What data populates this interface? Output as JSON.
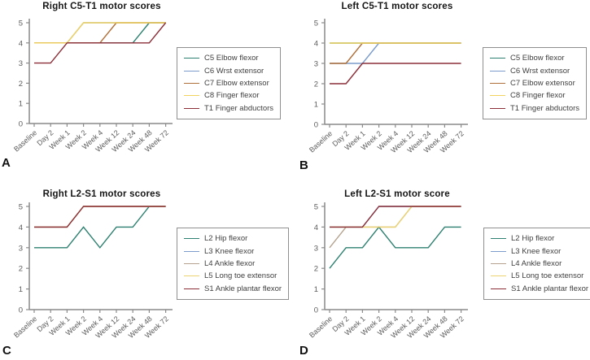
{
  "figure": {
    "background": "#ffffff",
    "axis_color": "#8a8a8a",
    "tick_label_color": "#5c5c5c"
  },
  "chart_data": [
    {
      "type": "line",
      "panel_label": "A",
      "title": "Right C5-T1 motor scores",
      "categories": [
        "Baseline",
        "Day 2",
        "Week 1",
        "Week 2",
        "Week 4",
        "Week 12",
        "Week 24",
        "Week 48",
        "Week 72"
      ],
      "xlabel": "",
      "ylabel": "",
      "ylim": [
        0,
        5
      ],
      "yticks": [
        0,
        1,
        2,
        3,
        4,
        5
      ],
      "grid": false,
      "legend_position": "right",
      "series": [
        {
          "name": "C5 Elbow flexor",
          "color": "#2e8070",
          "values": [
            4,
            4,
            4,
            4,
            4,
            4,
            4,
            5,
            5
          ]
        },
        {
          "name": "C6 Wrst extensor",
          "color": "#7b9ccc",
          "values": [
            4,
            4,
            4,
            5,
            5,
            5,
            5,
            5,
            5
          ]
        },
        {
          "name": "C7 Elbow extensor",
          "color": "#b0703a",
          "values": [
            4,
            4,
            4,
            4,
            4,
            5,
            5,
            5,
            5
          ]
        },
        {
          "name": "C8 Finger flexor",
          "color": "#f2d35e",
          "values": [
            4,
            4,
            4,
            5,
            5,
            5,
            5,
            5,
            5
          ]
        },
        {
          "name": "T1 Finger abductors",
          "color": "#8b2e38",
          "values": [
            3,
            3,
            4,
            4,
            4,
            4,
            4,
            4,
            5
          ]
        }
      ]
    },
    {
      "type": "line",
      "panel_label": "B",
      "title": "Left C5-T1 motor scores",
      "categories": [
        "Baseline",
        "Day 2",
        "Week 1",
        "Week 2",
        "Week 4",
        "Week 12",
        "Week 24",
        "Week 48",
        "Week 72"
      ],
      "xlabel": "",
      "ylabel": "",
      "ylim": [
        0,
        5
      ],
      "yticks": [
        0,
        1,
        2,
        3,
        4,
        5
      ],
      "grid": false,
      "legend_position": "right",
      "series": [
        {
          "name": "C5 Elbow flexor",
          "color": "#2e8070",
          "values": [
            4,
            4,
            4,
            4,
            4,
            4,
            4,
            4,
            4
          ]
        },
        {
          "name": "C6 Wrst extensor",
          "color": "#7b9ccc",
          "values": [
            3,
            3,
            3,
            4,
            4,
            4,
            4,
            4,
            4
          ]
        },
        {
          "name": "C7 Elbow extensor",
          "color": "#b0703a",
          "values": [
            3,
            3,
            4,
            4,
            4,
            4,
            4,
            4,
            4
          ]
        },
        {
          "name": "C8 Finger flexor",
          "color": "#f2d35e",
          "values": [
            4,
            4,
            4,
            4,
            4,
            4,
            4,
            4,
            4
          ]
        },
        {
          "name": "T1 Finger abductors",
          "color": "#8b2e38",
          "values": [
            2,
            2,
            3,
            3,
            3,
            3,
            3,
            3,
            3
          ]
        }
      ]
    },
    {
      "type": "line",
      "panel_label": "C",
      "title": "Right L2-S1 motor scores",
      "categories": [
        "Baseline",
        "Day 2",
        "Week 1",
        "Week 2",
        "Week 4",
        "Week 12",
        "Week 24",
        "Week 48",
        "Week 72"
      ],
      "xlabel": "",
      "ylabel": "",
      "ylim": [
        0,
        5
      ],
      "yticks": [
        0,
        1,
        2,
        3,
        4,
        5
      ],
      "grid": false,
      "legend_position": "right",
      "series": [
        {
          "name": "L2 Hip flexor",
          "color": "#2e8070",
          "values": [
            3,
            3,
            3,
            4,
            3,
            4,
            4,
            5,
            5
          ]
        },
        {
          "name": "L3 Knee flexor",
          "color": "#7b9ccc",
          "values": [
            4,
            4,
            4,
            5,
            5,
            5,
            5,
            5,
            5
          ]
        },
        {
          "name": "L4 Ankle flexor",
          "color": "#b5a38f",
          "values": [
            4,
            4,
            4,
            5,
            5,
            5,
            5,
            5,
            5
          ]
        },
        {
          "name": "L5 Long toe extensor",
          "color": "#ecd472",
          "values": [
            4,
            4,
            4,
            5,
            5,
            5,
            5,
            5,
            5
          ]
        },
        {
          "name": "S1 Ankle plantar flexor",
          "color": "#8b2e38",
          "values": [
            4,
            4,
            4,
            5,
            5,
            5,
            5,
            5,
            5
          ]
        }
      ]
    },
    {
      "type": "line",
      "panel_label": "D",
      "title": "Left L2-S1 motor score",
      "categories": [
        "Baseline",
        "Day 2",
        "Week 1",
        "Week 2",
        "Week 4",
        "Week 12",
        "Week 24",
        "Week 48",
        "Week 72"
      ],
      "xlabel": "",
      "ylabel": "",
      "ylim": [
        0,
        5
      ],
      "yticks": [
        0,
        1,
        2,
        3,
        4,
        5
      ],
      "grid": false,
      "legend_position": "right",
      "series": [
        {
          "name": "L2 Hip flexor",
          "color": "#2e8070",
          "values": [
            2,
            3,
            3,
            4,
            3,
            3,
            3,
            4,
            4
          ]
        },
        {
          "name": "L3 Knee flexor",
          "color": "#7b9ccc",
          "values": [
            4,
            4,
            4,
            5,
            5,
            5,
            5,
            5,
            5
          ]
        },
        {
          "name": "L4 Ankle flexor",
          "color": "#b5a38f",
          "values": [
            3,
            4,
            4,
            4,
            4,
            5,
            5,
            5,
            5
          ]
        },
        {
          "name": "L5 Long toe extensor",
          "color": "#ecd472",
          "values": [
            4,
            4,
            4,
            4,
            4,
            5,
            5,
            5,
            5
          ]
        },
        {
          "name": "S1 Ankle plantar flexor",
          "color": "#8b2e38",
          "values": [
            4,
            4,
            4,
            5,
            5,
            5,
            5,
            5,
            5
          ]
        }
      ]
    }
  ]
}
